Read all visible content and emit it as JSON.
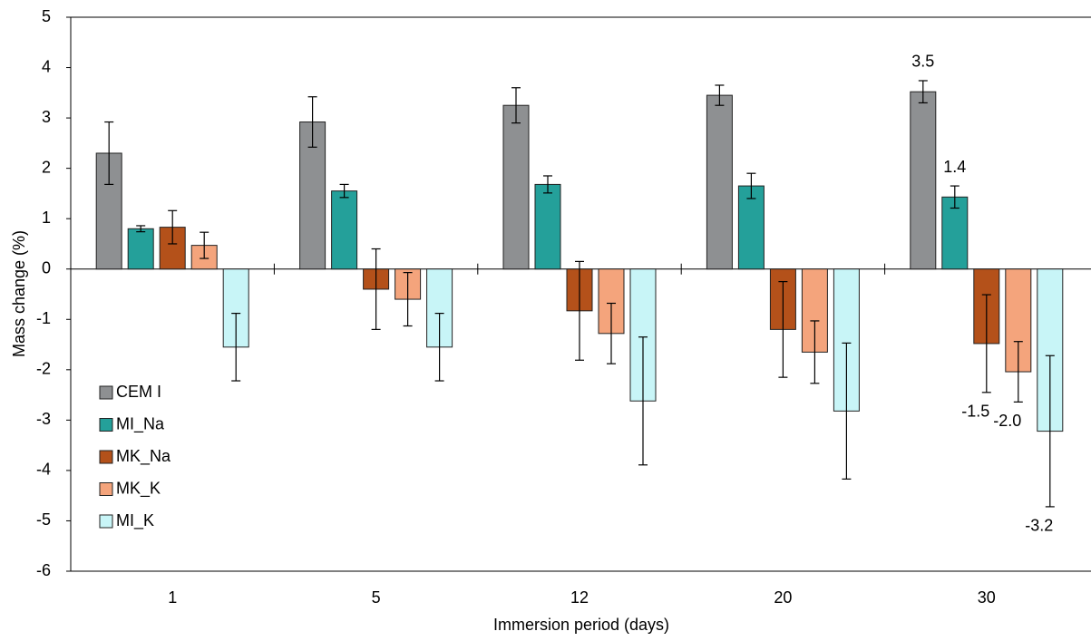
{
  "chart_data": {
    "type": "bar",
    "x_label": "Immersion period (days)",
    "y_label": "Mass change (%)",
    "categories": [
      "1",
      "5",
      "12",
      "20",
      "30"
    ],
    "ylim": [
      -6,
      5
    ],
    "yticks": [
      -6,
      -5,
      -4,
      -3,
      -2,
      -1,
      0,
      1,
      2,
      3,
      4,
      5
    ],
    "legend": "lower left",
    "series": [
      {
        "name": "CEM I",
        "color": "#8e9092",
        "values": [
          2.3,
          2.92,
          3.25,
          3.45,
          3.52
        ],
        "errors": [
          0.62,
          0.5,
          0.35,
          0.2,
          0.22
        ],
        "value_labels": [
          null,
          null,
          null,
          null,
          "3.5"
        ]
      },
      {
        "name": "MI_Na",
        "color": "#24a09a",
        "values": [
          0.8,
          1.55,
          1.68,
          1.65,
          1.43
        ],
        "errors": [
          0.06,
          0.13,
          0.17,
          0.25,
          0.22
        ],
        "value_labels": [
          null,
          null,
          null,
          null,
          "1.4"
        ]
      },
      {
        "name": "MK_Na",
        "color": "#b4511a",
        "values": [
          0.83,
          -0.4,
          -0.83,
          -1.2,
          -1.48
        ],
        "errors": [
          0.33,
          0.8,
          0.98,
          0.95,
          0.97
        ],
        "value_labels": [
          null,
          null,
          null,
          null,
          "-1.5"
        ]
      },
      {
        "name": "MK_K",
        "color": "#f4a47c",
        "values": [
          0.47,
          -0.6,
          -1.28,
          -1.65,
          -2.04
        ],
        "errors": [
          0.26,
          0.53,
          0.6,
          0.62,
          0.6
        ],
        "value_labels": [
          null,
          null,
          null,
          null,
          "-2.0"
        ]
      },
      {
        "name": "MI_K",
        "color": "#c8f5f7",
        "values": [
          -1.55,
          -1.55,
          -2.62,
          -2.82,
          -3.22
        ],
        "errors": [
          0.67,
          0.67,
          1.27,
          1.35,
          1.5
        ],
        "value_labels": [
          null,
          null,
          null,
          null,
          "-3.2"
        ]
      }
    ]
  }
}
